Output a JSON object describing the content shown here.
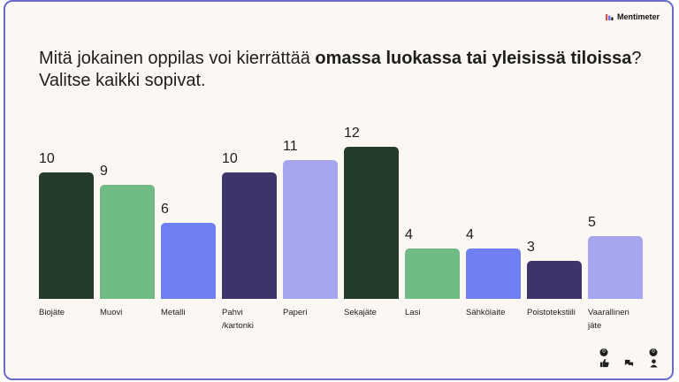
{
  "brand": {
    "name": "Mentimeter"
  },
  "question": {
    "prefix": "Mitä jokainen oppilas voi kierrättää ",
    "bold": "omassa luokassa tai yleisissä tiloissa",
    "suffix": "?",
    "line2": "Valitse kaikki sopivat."
  },
  "chart_data": {
    "type": "bar",
    "title": "Mitä jokainen oppilas voi kierrättää omassa luokassa tai yleisissä tiloissa? Valitse kaikki sopivat.",
    "categories": [
      "Biojäte",
      "Muovi",
      "Metalli",
      "Pahvi /kartonki",
      "Paperi",
      "Sekajäte",
      "Lasi",
      "Sähkölaite",
      "Poistotekstiili",
      "Vaarallinen jäte"
    ],
    "values": [
      10,
      9,
      6,
      10,
      11,
      12,
      4,
      4,
      3,
      5
    ],
    "colors": [
      "#253c2d",
      "#6fba85",
      "#6f7ef1",
      "#3d3469",
      "#a6a6ee",
      "#253c2d",
      "#6fba85",
      "#6f7ef1",
      "#3d3469",
      "#a6a6ee"
    ],
    "ylim": [
      0,
      12
    ],
    "xlabel": "",
    "ylabel": ""
  },
  "footer": {
    "reactions_badge": "0",
    "participants_badge": "0",
    "icons": [
      "thumbs-up-icon",
      "comments-icon",
      "participants-icon"
    ]
  }
}
